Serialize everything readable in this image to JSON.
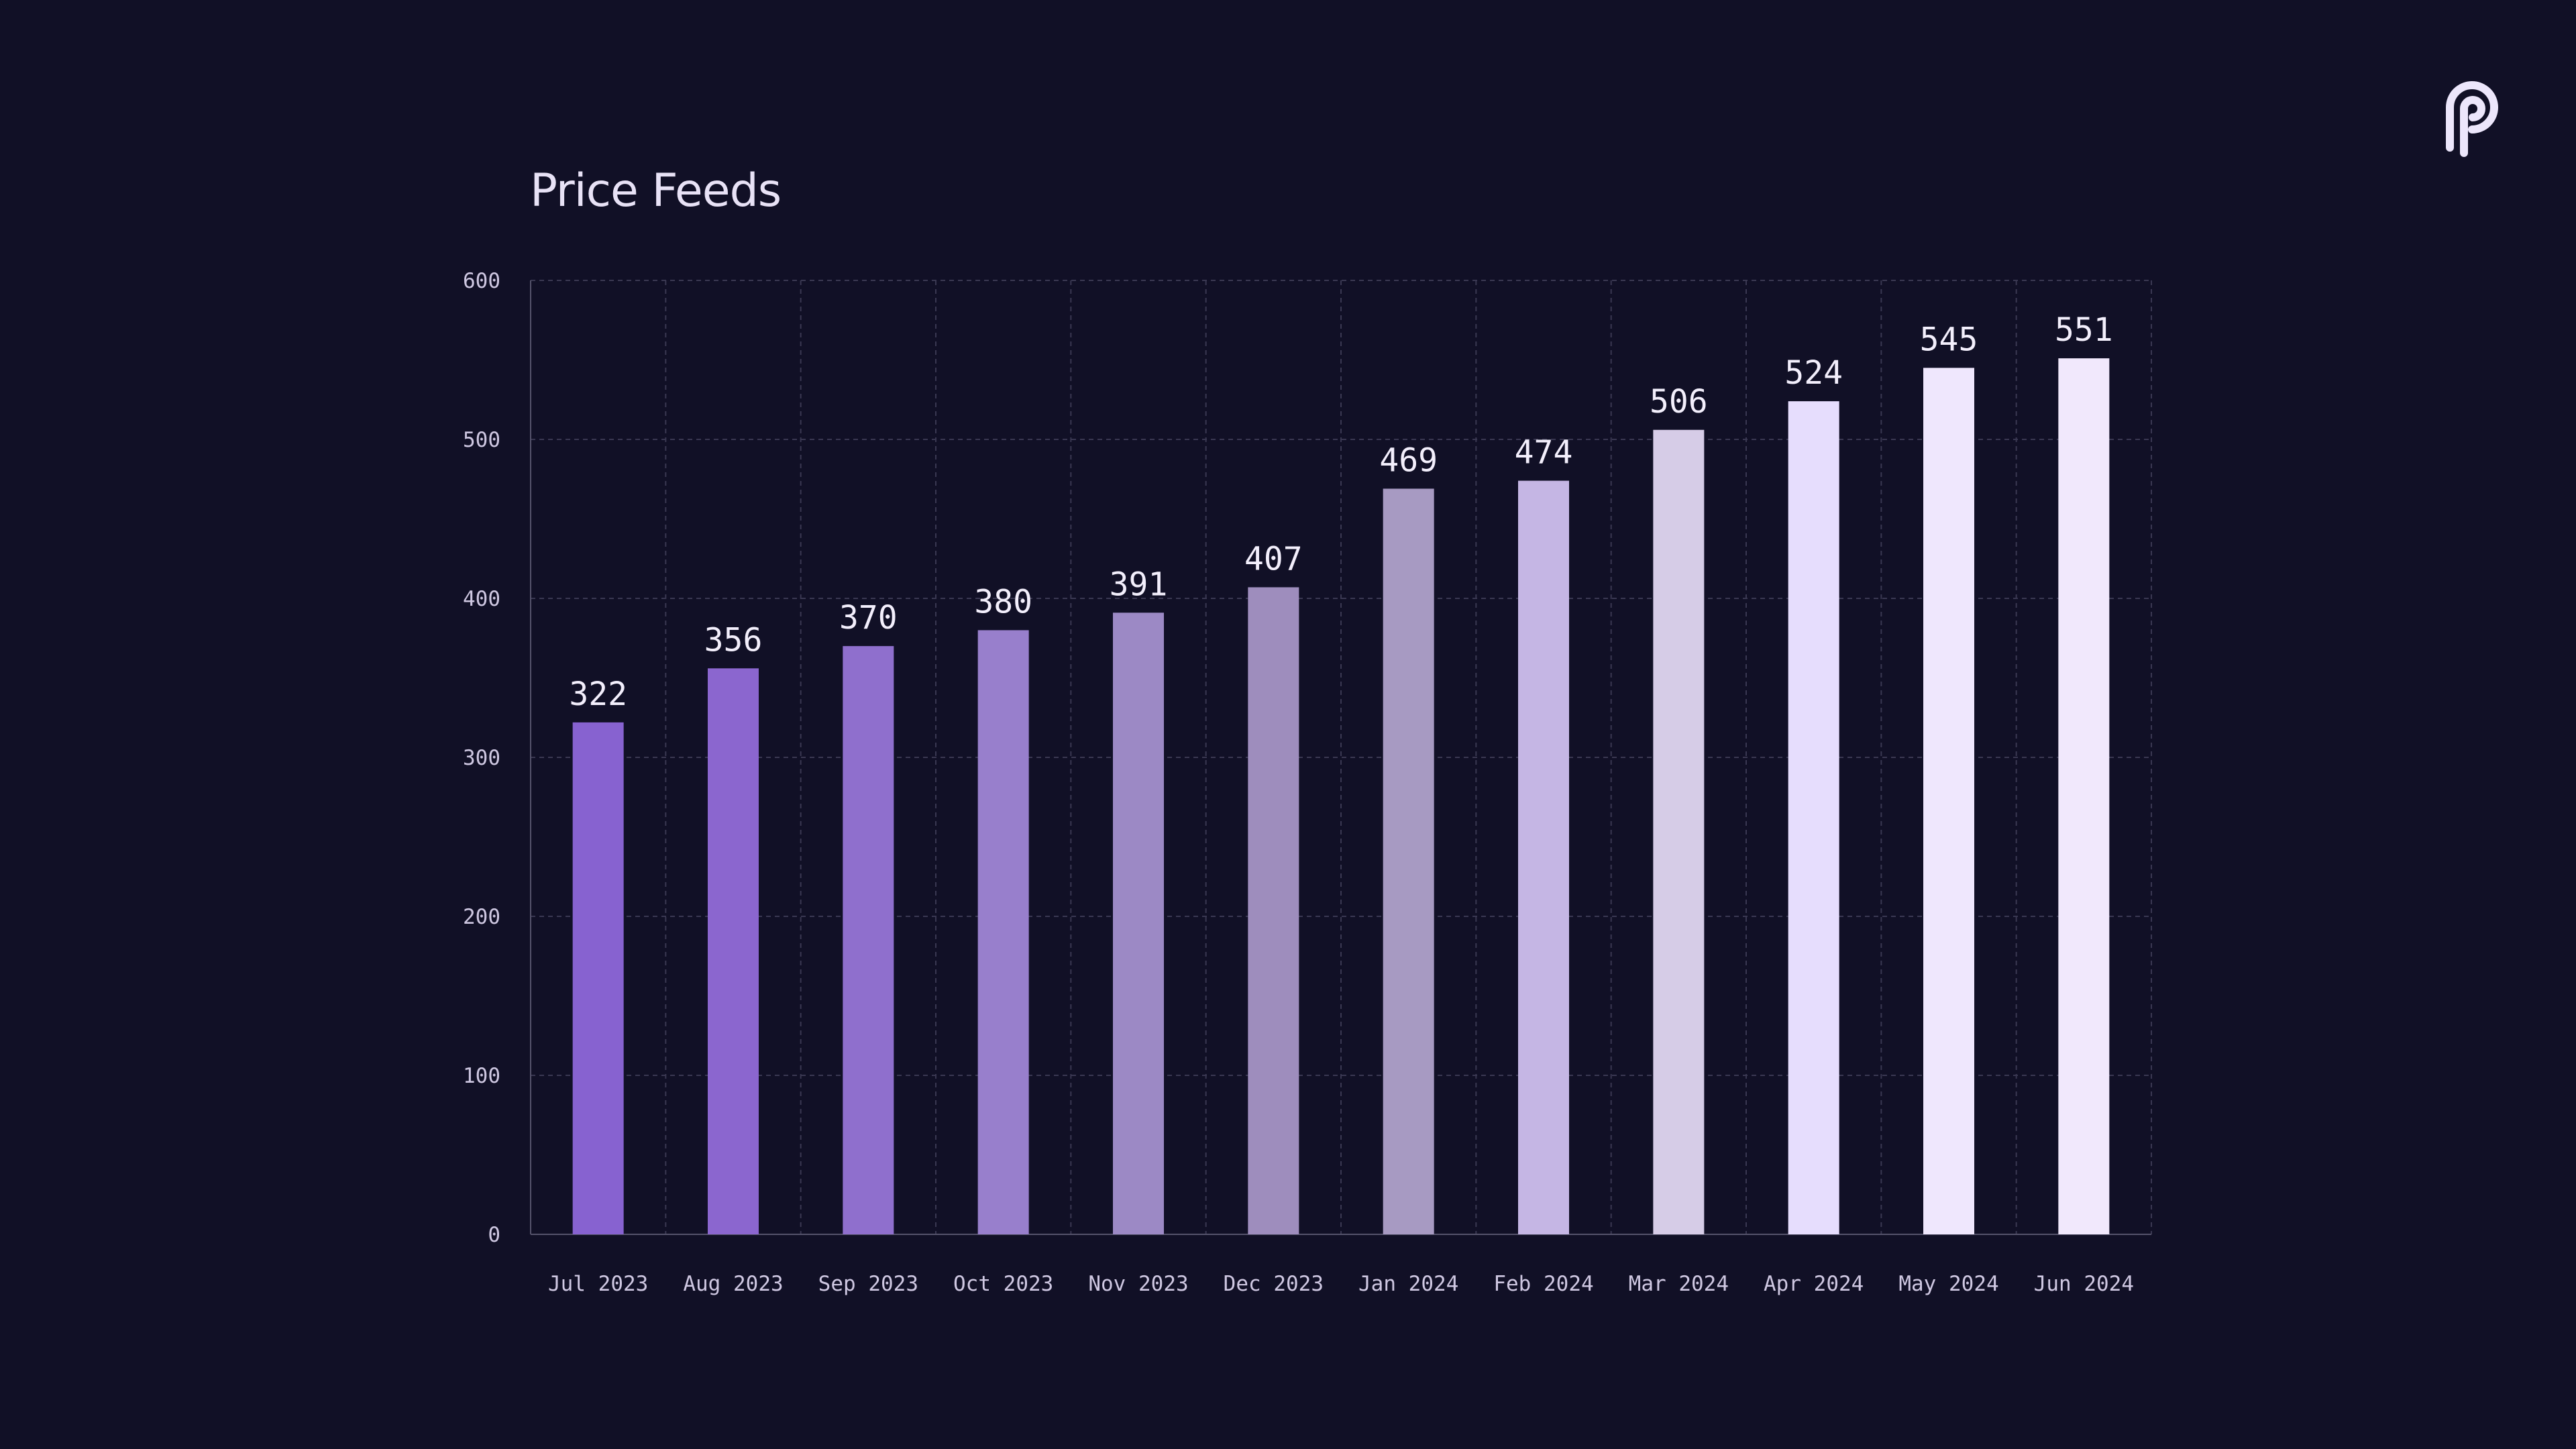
{
  "chart_data": {
    "type": "bar",
    "title": "Price Feeds",
    "categories": [
      "Jul 2023",
      "Aug 2023",
      "Sep 2023",
      "Oct 2023",
      "Nov 2023",
      "Dec 2023",
      "Jan 2024",
      "Feb 2024",
      "Mar 2024",
      "Apr 2024",
      "May 2024",
      "Jun 2024"
    ],
    "values": [
      322,
      356,
      370,
      380,
      391,
      407,
      469,
      474,
      506,
      524,
      545,
      551
    ],
    "bar_colors": [
      "#8762d0",
      "#8b66cf",
      "#8f6fcd",
      "#987fcc",
      "#9c89c5",
      "#9e8dbd",
      "#a79ac2",
      "#c5b6e4",
      "#d6cce7",
      "#e6ddfd",
      "#efe7fd",
      "#f1e8fc"
    ],
    "ylim": [
      0,
      600
    ],
    "yticks": [
      0,
      100,
      200,
      300,
      400,
      500,
      600
    ],
    "xlabel": "",
    "ylabel": "",
    "grid": true,
    "show_value_labels": true
  },
  "colors": {
    "background": "#111026",
    "grid": "#3a3852",
    "axis": "#55536b",
    "text": "#cfc8e2",
    "value_label": "#f3effc",
    "title": "#e8e2f6",
    "logo": "#ece6fb"
  },
  "logo": {
    "icon": "pyth-logo-icon"
  }
}
